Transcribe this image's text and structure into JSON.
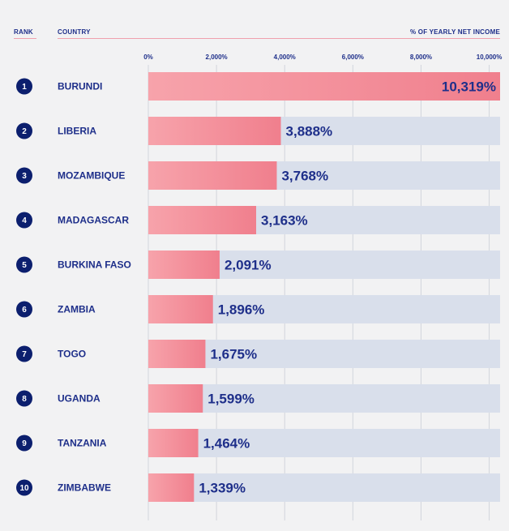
{
  "header": {
    "rank": "RANK",
    "country": "COUNTRY",
    "metric": "% OF YEARLY NET INCOME"
  },
  "colors": {
    "accent": "#f07f8d",
    "accent_light": "#f7a3ab",
    "track": "#d9dfeb",
    "text": "#1e2f8a",
    "badge": "#0c1f6e"
  },
  "chart_data": {
    "type": "bar",
    "orientation": "horizontal",
    "categories": [
      "BURUNDI",
      "LIBERIA",
      "MOZAMBIQUE",
      "MADAGASCAR",
      "BURKINA FASO",
      "ZAMBIA",
      "TOGO",
      "UGANDA",
      "TANZANIA",
      "ZIMBABWE"
    ],
    "ranks": [
      "1",
      "2",
      "3",
      "4",
      "5",
      "6",
      "7",
      "8",
      "9",
      "10"
    ],
    "values": [
      10319,
      3888,
      3768,
      3163,
      2091,
      1896,
      1675,
      1599,
      1464,
      1339
    ],
    "value_labels": [
      "10,319%",
      "3,888%",
      "3,768%",
      "3,163%",
      "2,091%",
      "1,896%",
      "1,675%",
      "1,599%",
      "1,464%",
      "1,339%"
    ],
    "xlim": [
      0,
      10319
    ],
    "xticks": [
      0,
      2000,
      4000,
      6000,
      8000,
      10000
    ],
    "xtick_labels": [
      "0%",
      "2,000%",
      "4,000%",
      "6,000%",
      "8,000%",
      "10,000%"
    ],
    "grid": true
  }
}
